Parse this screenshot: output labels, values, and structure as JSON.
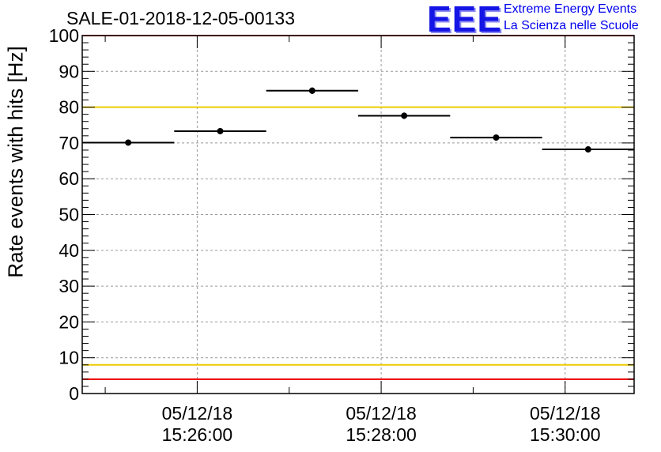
{
  "header": {
    "title": "SALE-01-2018-12-05-00133",
    "logo_text": "EEE",
    "logo_line1": "Extreme Energy Events",
    "logo_line2": "La Scienza nelle Scuole"
  },
  "chart_data": {
    "type": "scatter",
    "ylabel": "Rate events with hits [Hz]",
    "ylim": [
      0,
      100
    ],
    "yticks": [
      0,
      10,
      20,
      30,
      40,
      50,
      60,
      70,
      80,
      90,
      100
    ],
    "x_range": [
      "15:24:45",
      "15:30:45"
    ],
    "xticks": [
      {
        "time": "15:26:00",
        "date": "05/12/18"
      },
      {
        "time": "15:28:00",
        "date": "05/12/18"
      },
      {
        "time": "15:30:00",
        "date": "05/12/18"
      }
    ],
    "grid": true,
    "points": [
      {
        "x_start": "15:24:45",
        "x_end": "15:25:45",
        "y": 70.1,
        "yerr": 0.8
      },
      {
        "x_start": "15:25:45",
        "x_end": "15:26:45",
        "y": 73.3,
        "yerr": 0.8
      },
      {
        "x_start": "15:26:45",
        "x_end": "15:27:45",
        "y": 84.6,
        "yerr": 0.9
      },
      {
        "x_start": "15:27:45",
        "x_end": "15:28:45",
        "y": 77.6,
        "yerr": 0.9
      },
      {
        "x_start": "15:28:45",
        "x_end": "15:29:45",
        "y": 71.5,
        "yerr": 0.8
      },
      {
        "x_start": "15:29:45",
        "x_end": "15:30:45",
        "y": 68.2,
        "yerr": 0.8
      }
    ],
    "reference_lines": [
      {
        "y": 100,
        "color": "#ee0000"
      },
      {
        "y": 80,
        "color": "#eecc00"
      },
      {
        "y": 8,
        "color": "#eecc00"
      },
      {
        "y": 4,
        "color": "#ee0000"
      }
    ]
  }
}
